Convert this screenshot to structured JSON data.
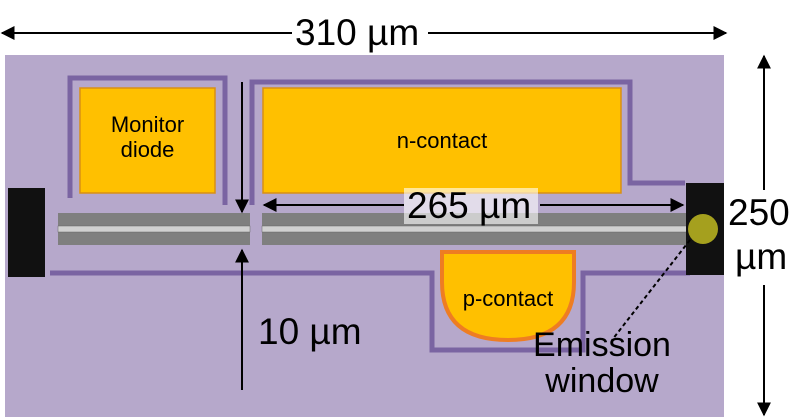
{
  "labels": {
    "width_dim": "310 µm",
    "height_dim_value": "250",
    "height_dim_unit": "µm",
    "cavity_dim": "265 µm",
    "gap_dim": "10 µm",
    "monitor_line1": "Monitor",
    "monitor_line2": "diode",
    "n_contact": "n-contact",
    "p_contact": "p-contact",
    "emission_line1": "Emission",
    "emission_line2": "window"
  },
  "colors": {
    "chip": "#b6a8cb",
    "border": "#7a64a2",
    "contact_fill": "#ffc000",
    "contact_edge": "#d98f14",
    "p_contact_edge": "#ee7d22",
    "waveguide": "#7f7f7f",
    "waveguide_core": "#d0d0d0",
    "facet": "#111111",
    "emission_dot": "#a5a01e"
  }
}
